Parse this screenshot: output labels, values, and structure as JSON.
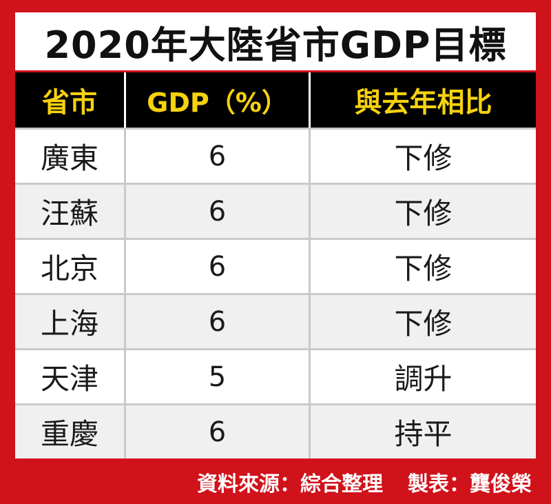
{
  "title": "2020年大陸省市GDP目標",
  "table": {
    "headers": [
      "省市",
      "GDP（%）",
      "與去年相比"
    ],
    "rows": [
      {
        "province": "廣東",
        "gdp": "6",
        "change": "下修"
      },
      {
        "province": "汪蘇",
        "gdp": "6",
        "change": "下修"
      },
      {
        "province": "北京",
        "gdp": "6",
        "change": "下修"
      },
      {
        "province": "上海",
        "gdp": "6",
        "change": "下修"
      },
      {
        "province": "天津",
        "gdp": "5",
        "change": "調升"
      },
      {
        "province": "重慶",
        "gdp": "6",
        "change": "持平"
      }
    ]
  },
  "footer": {
    "source": "資料來源：綜合整理",
    "author": "製表：龔俊榮"
  },
  "colors": {
    "frame": "#d0121b",
    "header_bg": "#000000",
    "header_text": "#f6d20f",
    "row_alt": "#f0f0f0"
  }
}
